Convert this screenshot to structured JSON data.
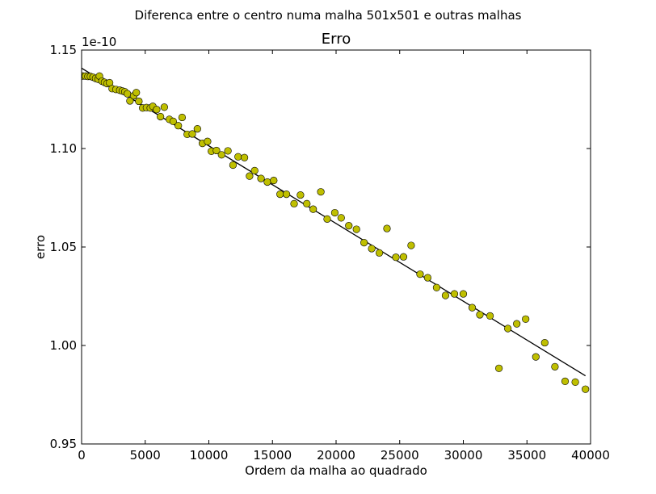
{
  "suptitle": "Diferenca entre o centro numa malha 501x501 e outras malhas",
  "chart_data": {
    "type": "scatter",
    "title": "Erro",
    "xlabel": "Ordem da malha ao quadrado",
    "ylabel": "erro",
    "offset_text": "1e-10",
    "xlim": [
      0,
      40000
    ],
    "ylim": [
      0.95,
      1.15
    ],
    "xticks": [
      0,
      5000,
      10000,
      15000,
      20000,
      25000,
      30000,
      35000,
      40000
    ],
    "xtick_labels": [
      "0",
      "5000",
      "10000",
      "15000",
      "20000",
      "25000",
      "30000",
      "35000",
      "40000"
    ],
    "yticks": [
      0.95,
      1.0,
      1.05,
      1.1,
      1.15
    ],
    "ytick_labels": [
      "0.95",
      "1.00",
      "1.05",
      "1.10",
      "1.15"
    ],
    "grid": false,
    "marker_color": "#bfbf00",
    "line_color": "#000000",
    "series": [
      {
        "kind": "markers",
        "points": [
          [
            100,
            1.1368
          ],
          [
            300,
            1.1368
          ],
          [
            500,
            1.1366
          ],
          [
            700,
            1.1366
          ],
          [
            900,
            1.1362
          ],
          [
            1100,
            1.1356
          ],
          [
            1300,
            1.1352
          ],
          [
            1400,
            1.1368
          ],
          [
            1600,
            1.1342
          ],
          [
            1800,
            1.1336
          ],
          [
            2000,
            1.133
          ],
          [
            2200,
            1.1334
          ],
          [
            2400,
            1.1304
          ],
          [
            2700,
            1.13
          ],
          [
            3000,
            1.1296
          ],
          [
            3200,
            1.1292
          ],
          [
            3400,
            1.1288
          ],
          [
            3600,
            1.1278
          ],
          [
            3800,
            1.1242
          ],
          [
            4100,
            1.1268
          ],
          [
            4300,
            1.1284
          ],
          [
            4500,
            1.124
          ],
          [
            4800,
            1.1206
          ],
          [
            5100,
            1.1208
          ],
          [
            5400,
            1.1206
          ],
          [
            5600,
            1.1214
          ],
          [
            5900,
            1.1198
          ],
          [
            6200,
            1.1162
          ],
          [
            6500,
            1.121
          ],
          [
            6900,
            1.1148
          ],
          [
            7200,
            1.1138
          ],
          [
            7600,
            1.1116
          ],
          [
            7900,
            1.1158
          ],
          [
            8300,
            1.1072
          ],
          [
            8700,
            1.1074
          ],
          [
            9100,
            1.11
          ],
          [
            9500,
            1.1026
          ],
          [
            9900,
            1.1036
          ],
          [
            10200,
            1.0986
          ],
          [
            10600,
            1.099
          ],
          [
            11000,
            1.0968
          ],
          [
            11500,
            1.0988
          ],
          [
            11900,
            1.0916
          ],
          [
            12300,
            1.0958
          ],
          [
            12800,
            1.0954
          ],
          [
            13200,
            1.086
          ],
          [
            13600,
            1.0888
          ],
          [
            14100,
            1.0848
          ],
          [
            14600,
            1.083
          ],
          [
            15100,
            1.0838
          ],
          [
            15600,
            1.0768
          ],
          [
            16100,
            1.0768
          ],
          [
            16700,
            1.072
          ],
          [
            17200,
            1.0764
          ],
          [
            17700,
            1.072
          ],
          [
            18200,
            1.0692
          ],
          [
            18800,
            1.078
          ],
          [
            19300,
            1.0642
          ],
          [
            19900,
            1.0674
          ],
          [
            20400,
            1.0648
          ],
          [
            21000,
            1.0608
          ],
          [
            21600,
            1.059
          ],
          [
            22200,
            1.0522
          ],
          [
            22800,
            1.0492
          ],
          [
            23400,
            1.047
          ],
          [
            24000,
            1.0594
          ],
          [
            24700,
            1.0448
          ],
          [
            25300,
            1.045
          ],
          [
            25900,
            1.0508
          ],
          [
            26600,
            1.0362
          ],
          [
            27200,
            1.0344
          ],
          [
            27900,
            1.0294
          ],
          [
            28600,
            1.0254
          ],
          [
            29300,
            1.0262
          ],
          [
            30000,
            1.0262
          ],
          [
            30700,
            1.0192
          ],
          [
            31300,
            1.0156
          ],
          [
            32100,
            1.015
          ],
          [
            32800,
            0.9884
          ],
          [
            33500,
            1.0086
          ],
          [
            34200,
            1.011
          ],
          [
            34900,
            1.0134
          ],
          [
            35700,
            0.9942
          ],
          [
            36400,
            1.0014
          ],
          [
            37200,
            0.9892
          ],
          [
            38000,
            0.9818
          ],
          [
            38800,
            0.9814
          ],
          [
            39600,
            0.9778
          ]
        ]
      },
      {
        "kind": "fit_line",
        "points": [
          [
            0,
            1.1408
          ],
          [
            39600,
            0.9846
          ]
        ]
      }
    ]
  }
}
